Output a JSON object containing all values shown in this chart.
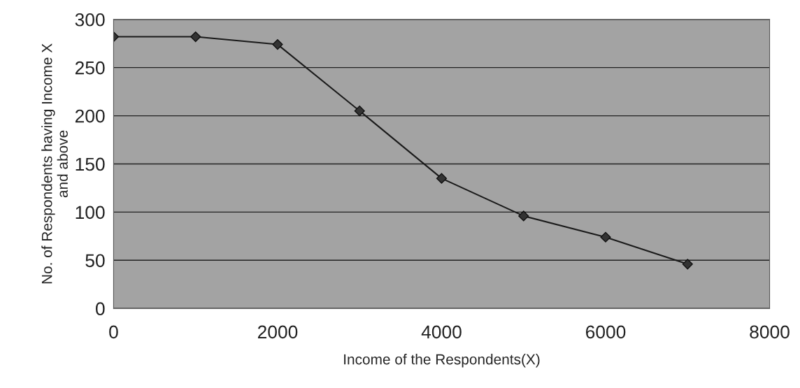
{
  "chart_data": {
    "type": "line",
    "xlabel": "Income of the Respondents(X)",
    "ylabel": "No. of Respondents having Income X\nand above",
    "x": [
      0,
      1000,
      2000,
      3000,
      4000,
      5000,
      6000,
      7000
    ],
    "series": [
      {
        "color": "#1a1a1a",
        "values": [
          282,
          282,
          274,
          205,
          135,
          96,
          74,
          46
        ]
      }
    ],
    "xlim": [
      0,
      8000
    ],
    "xticks": [
      0,
      2000,
      4000,
      6000,
      8000
    ],
    "ylim": [
      0,
      300
    ],
    "yticks": [
      0,
      50,
      100,
      150,
      200,
      250,
      300
    ],
    "grid": "y",
    "marker": "diamond",
    "line_style": "solid"
  }
}
